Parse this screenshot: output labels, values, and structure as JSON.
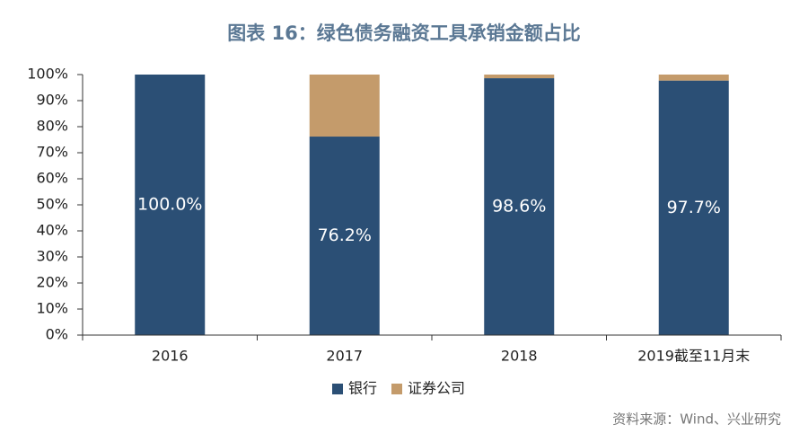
{
  "chart_data": {
    "type": "stacked_bar",
    "title": "图表 16：绿色债务融资工具承销金额占比",
    "categories": [
      "2016",
      "2017",
      "2018",
      "2019截至11月末"
    ],
    "series": [
      {
        "name": "银行",
        "color": "#2b4f75",
        "values": [
          100,
          76.2,
          98.6,
          97.7
        ],
        "value_labels": [
          "100.0%",
          "76.2%",
          "98.6%",
          "97.7%"
        ]
      },
      {
        "name": "证券公司",
        "color": "#c49b6b",
        "values": [
          0,
          23.8,
          1.4,
          2.3
        ]
      }
    ],
    "ylim": [
      0,
      100
    ],
    "yticks": [
      {
        "value": 0,
        "label": "0%"
      },
      {
        "value": 10,
        "label": "10%"
      },
      {
        "value": 20,
        "label": "20%"
      },
      {
        "value": 30,
        "label": "30%"
      },
      {
        "value": 40,
        "label": "40%"
      },
      {
        "value": 50,
        "label": "50%"
      },
      {
        "value": 60,
        "label": "60%"
      },
      {
        "value": 70,
        "label": "70%"
      },
      {
        "value": 80,
        "label": "80%"
      },
      {
        "value": 90,
        "label": "90%"
      },
      {
        "value": 100,
        "label": "100%"
      }
    ],
    "grid": false,
    "legend": "bottom",
    "source": "资料来源：Wind、兴业研究"
  }
}
